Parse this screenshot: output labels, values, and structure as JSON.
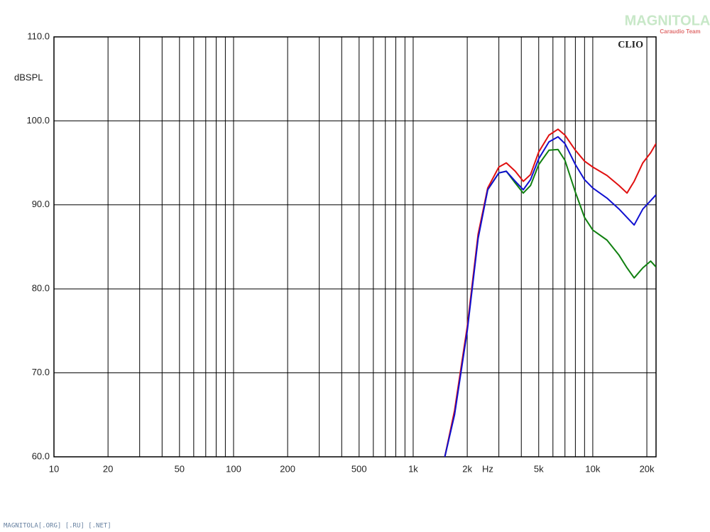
{
  "chart_data": {
    "type": "line",
    "y_label": "dBSPL",
    "x_unit": "Hz",
    "brand": "CLIO",
    "watermark": "MAGNITOLA",
    "watermark_sub": "Caraudio Team",
    "footer": "MAGNITOLA[.ORG] [.RU] [.NET]",
    "xscale": "log",
    "grid": true,
    "xlim": [
      10,
      22500
    ],
    "ylim": [
      60,
      110
    ],
    "xticks": [
      10,
      20,
      50,
      100,
      200,
      500,
      {
        "value": 1000,
        "label": "1k"
      },
      {
        "value": 2000,
        "label": "2k"
      },
      {
        "value": 5000,
        "label": "5k"
      },
      {
        "value": 10000,
        "label": "10k"
      },
      {
        "value": 20000,
        "label": "20k"
      }
    ],
    "xminor": [
      30,
      40,
      60,
      70,
      80,
      90,
      300,
      400,
      600,
      700,
      800,
      900,
      3000,
      4000,
      6000,
      7000,
      8000,
      9000
    ],
    "yticks": [
      {
        "value": 60,
        "label": "60.0"
      },
      {
        "value": 70,
        "label": "70.0"
      },
      {
        "value": 80,
        "label": "80.0"
      },
      {
        "value": 90,
        "label": "90.0"
      },
      {
        "value": 100,
        "label": "100.0"
      },
      {
        "value": 110,
        "label": "110.0"
      }
    ],
    "x": [
      1500,
      1700,
      2000,
      2300,
      2600,
      3000,
      3300,
      3700,
      4100,
      4500,
      5000,
      5700,
      6400,
      7000,
      8000,
      9000,
      10000,
      12000,
      14000,
      15500,
      17000,
      19000,
      21000,
      22500
    ],
    "series": [
      {
        "color": "#108010",
        "values": [
          60,
          65.2,
          75.3,
          86.2,
          91.8,
          93.8,
          94.0,
          92.6,
          91.4,
          92.3,
          94.8,
          96.5,
          96.6,
          95.3,
          91.5,
          88.5,
          87.0,
          85.8,
          84.0,
          82.5,
          81.3,
          82.5,
          83.3,
          82.6
        ]
      },
      {
        "color": "#e01010",
        "values": [
          60,
          65.5,
          75.5,
          86.5,
          92.0,
          94.5,
          95.0,
          94.0,
          92.8,
          93.6,
          96.3,
          98.3,
          99.0,
          98.3,
          96.5,
          95.2,
          94.5,
          93.5,
          92.3,
          91.4,
          92.8,
          95.0,
          96.2,
          97.3
        ]
      },
      {
        "color": "#1010d0",
        "values": [
          60,
          65.0,
          75.0,
          86.0,
          91.8,
          93.8,
          94.0,
          92.8,
          91.8,
          93.0,
          95.5,
          97.5,
          98.1,
          97.3,
          94.8,
          93.0,
          92.0,
          90.8,
          89.5,
          88.5,
          87.6,
          89.5,
          90.5,
          91.2
        ]
      }
    ]
  }
}
